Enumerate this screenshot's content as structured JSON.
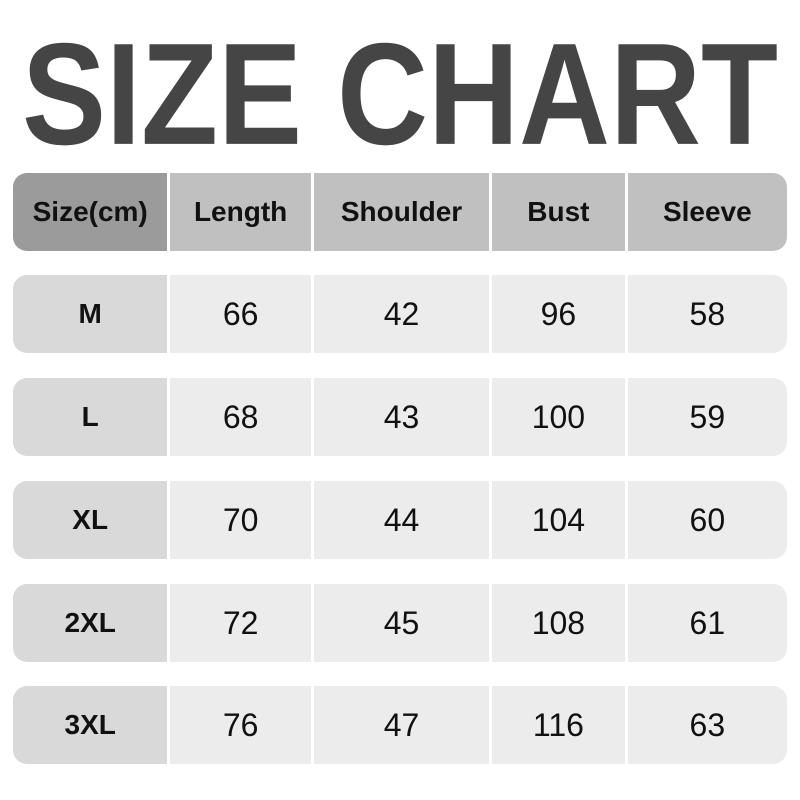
{
  "title": "SIZE CHART",
  "headers": [
    "Size(cm)",
    "Length",
    "Shoulder",
    "Bust",
    "Sleeve"
  ],
  "rows": [
    [
      "M",
      "66",
      "42",
      "96",
      "58"
    ],
    [
      "L",
      "68",
      "43",
      "100",
      "59"
    ],
    [
      "XL",
      "70",
      "44",
      "104",
      "60"
    ],
    [
      "2XL",
      "72",
      "45",
      "108",
      "61"
    ],
    [
      "3XL",
      "76",
      "47",
      "116",
      "63"
    ]
  ]
}
